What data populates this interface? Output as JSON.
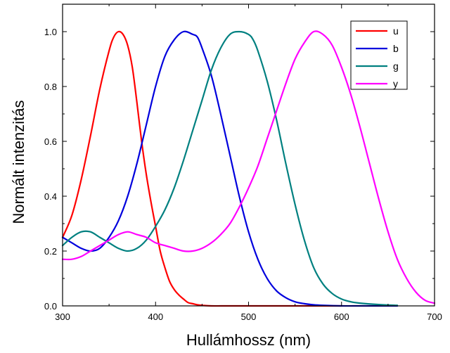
{
  "chart_data": {
    "type": "line",
    "xlabel": "Hullámhossz (nm)",
    "ylabel": "Normált intenzitás",
    "xlim": [
      300,
      700
    ],
    "ylim": [
      0.0,
      1.1
    ],
    "xticks": [
      300,
      400,
      500,
      600,
      700
    ],
    "yticks": [
      0.0,
      0.2,
      0.4,
      0.6,
      0.8,
      1.0
    ],
    "xtick_labels": [
      "300",
      "400",
      "500",
      "600",
      "700"
    ],
    "ytick_labels": [
      "0.0",
      "0.2",
      "0.4",
      "0.6",
      "0.8",
      "1.0"
    ],
    "grid": false,
    "legend_position": "top-right",
    "series": [
      {
        "name": "u",
        "color": "#ff0000",
        "x": [
          300,
          310,
          320,
          330,
          340,
          350,
          355,
          360,
          365,
          370,
          375,
          380,
          385,
          390,
          395,
          400,
          405,
          410,
          415,
          420,
          425,
          430,
          435,
          440,
          445,
          450,
          460,
          480,
          520,
          560,
          600
        ],
        "y": [
          0.25,
          0.33,
          0.46,
          0.62,
          0.79,
          0.93,
          0.98,
          1.0,
          0.99,
          0.95,
          0.87,
          0.74,
          0.6,
          0.48,
          0.38,
          0.29,
          0.2,
          0.14,
          0.09,
          0.06,
          0.04,
          0.025,
          0.012,
          0.008,
          0.004,
          0.002,
          0.0,
          0.0,
          0.0,
          0.0,
          0.0
        ]
      },
      {
        "name": "b",
        "color": "#0000dd",
        "x": [
          300,
          310,
          320,
          330,
          340,
          350,
          360,
          370,
          380,
          390,
          400,
          410,
          420,
          430,
          440,
          445,
          450,
          460,
          470,
          480,
          490,
          500,
          510,
          520,
          530,
          540,
          550,
          560,
          570,
          580,
          600,
          620,
          640,
          660
        ],
        "y": [
          0.25,
          0.23,
          0.21,
          0.2,
          0.21,
          0.25,
          0.31,
          0.4,
          0.52,
          0.66,
          0.8,
          0.91,
          0.97,
          1.0,
          0.99,
          0.98,
          0.94,
          0.84,
          0.7,
          0.55,
          0.4,
          0.27,
          0.17,
          0.1,
          0.055,
          0.03,
          0.015,
          0.008,
          0.004,
          0.002,
          0.0,
          0.0,
          0.0,
          0.0
        ]
      },
      {
        "name": "g",
        "color": "#008080",
        "x": [
          300,
          310,
          320,
          330,
          340,
          350,
          360,
          370,
          380,
          390,
          400,
          410,
          420,
          430,
          440,
          450,
          460,
          470,
          480,
          490,
          500,
          505,
          510,
          520,
          530,
          540,
          550,
          560,
          570,
          580,
          590,
          600,
          610,
          620,
          640,
          660
        ],
        "y": [
          0.22,
          0.25,
          0.27,
          0.27,
          0.25,
          0.23,
          0.21,
          0.2,
          0.21,
          0.24,
          0.29,
          0.35,
          0.43,
          0.53,
          0.64,
          0.75,
          0.86,
          0.94,
          0.99,
          1.0,
          0.99,
          0.97,
          0.93,
          0.82,
          0.68,
          0.52,
          0.37,
          0.24,
          0.14,
          0.08,
          0.045,
          0.025,
          0.015,
          0.01,
          0.005,
          0.002
        ]
      },
      {
        "name": "y",
        "color": "#ff00ff",
        "x": [
          300,
          310,
          320,
          330,
          340,
          350,
          360,
          370,
          380,
          390,
          400,
          410,
          420,
          430,
          440,
          450,
          460,
          470,
          480,
          490,
          500,
          510,
          520,
          530,
          540,
          550,
          560,
          570,
          580,
          590,
          600,
          610,
          620,
          630,
          640,
          650,
          660,
          670,
          680,
          690,
          700
        ],
        "y": [
          0.17,
          0.17,
          0.18,
          0.2,
          0.22,
          0.24,
          0.26,
          0.27,
          0.26,
          0.25,
          0.23,
          0.22,
          0.21,
          0.2,
          0.2,
          0.21,
          0.23,
          0.26,
          0.3,
          0.36,
          0.43,
          0.51,
          0.61,
          0.71,
          0.81,
          0.9,
          0.96,
          1.0,
          0.99,
          0.95,
          0.87,
          0.77,
          0.65,
          0.52,
          0.39,
          0.27,
          0.17,
          0.1,
          0.05,
          0.02,
          0.01
        ]
      }
    ]
  }
}
